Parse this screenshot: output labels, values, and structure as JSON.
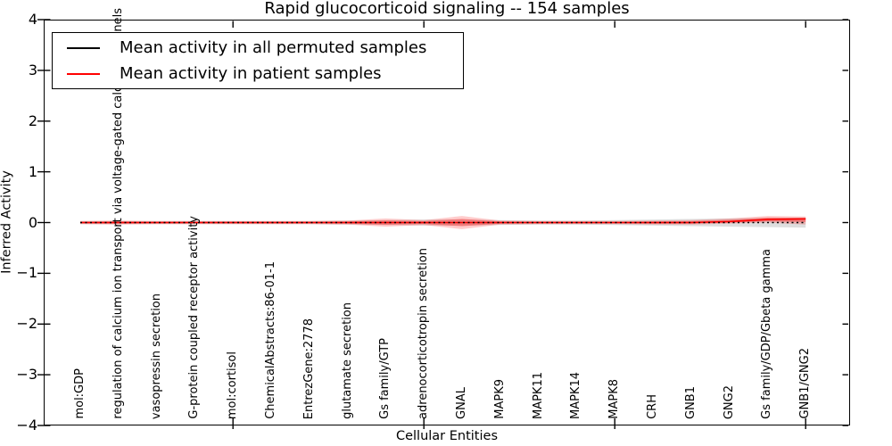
{
  "title": "Rapid glucocorticoid signaling -- 154 samples",
  "axes": {
    "xlabel": "Cellular Entities",
    "ylabel": "Inferred Activity",
    "ytick_labels": [
      "4",
      "3",
      "2",
      "1",
      "0",
      "−1",
      "−2",
      "−3",
      "−4"
    ]
  },
  "legend": {
    "items": [
      {
        "label": "Mean activity in all permuted samples",
        "color": "#000000"
      },
      {
        "label": "Mean activity in patient samples",
        "color": "#ff0000"
      }
    ]
  },
  "chart_data": {
    "type": "line",
    "title": "Rapid glucocorticoid signaling -- 154 samples",
    "xlabel": "Cellular Entities",
    "ylabel": "Inferred Activity",
    "ylim": [
      -4,
      4
    ],
    "yticks": [
      -4,
      -3,
      -2,
      -1,
      0,
      1,
      2,
      3,
      4
    ],
    "grid": false,
    "legend_position": "upper left",
    "categories": [
      "mol:GDP",
      "regulation of calcium ion transport via voltage-gated calcium channels",
      "vasopressin secretion",
      "G-protein coupled receptor activity",
      "mol:cortisol",
      "ChemicalAbstracts:86-01-1",
      "EntrezGene:2778",
      "glutamate secretion",
      "Gs family/GTP",
      "adrenocorticotropin secretion",
      "GNAL",
      "MAPK9",
      "MAPK11",
      "MAPK14",
      "MAPK8",
      "CRH",
      "GNB1",
      "GNG2",
      "Gs family/GDP/Gbeta gamma",
      "GNB1/GNG2"
    ],
    "xtick_marked_categories": [
      "mol:cortisol",
      "adrenocorticotropin secretion",
      "MAPK8",
      "GNB1/GNG2"
    ],
    "series": [
      {
        "name": "Mean activity in all permuted samples",
        "color": "#000000",
        "line_style": "dotted",
        "values": [
          0,
          0,
          0,
          0,
          0,
          0,
          0,
          0,
          0,
          0,
          0,
          0,
          0,
          0,
          0,
          0,
          0,
          0,
          0,
          0
        ]
      },
      {
        "name": "Mean activity in patient samples",
        "color": "#ff0000",
        "line_style": "solid",
        "values": [
          0,
          0,
          0,
          0,
          0,
          0,
          0,
          0,
          0,
          0,
          0,
          0,
          0,
          0,
          0,
          0,
          0,
          0.02,
          0.06,
          0.07
        ]
      }
    ],
    "bands": [
      {
        "name": "permuted samples spread",
        "color": "#000000",
        "opacity": 0.13,
        "upper": [
          0.03,
          0.03,
          0.03,
          0.03,
          0.03,
          0.03,
          0.03,
          0.04,
          0.05,
          0.06,
          0.06,
          0.05,
          0.04,
          0.04,
          0.05,
          0.06,
          0.07,
          0.08,
          0.09,
          0.1
        ],
        "lower": [
          -0.03,
          -0.03,
          -0.03,
          -0.03,
          -0.03,
          -0.03,
          -0.03,
          -0.04,
          -0.05,
          -0.06,
          -0.06,
          -0.05,
          -0.04,
          -0.04,
          -0.05,
          -0.06,
          -0.07,
          -0.08,
          -0.09,
          -0.1
        ]
      },
      {
        "name": "patient samples spread",
        "color": "#ff0000",
        "opacity": 0.2,
        "upper": [
          0.03,
          0.04,
          0.03,
          0.03,
          0.03,
          0.03,
          0.03,
          0.04,
          0.08,
          0.05,
          0.13,
          0.04,
          0.03,
          0.03,
          0.03,
          0.04,
          0.05,
          0.08,
          0.13,
          0.12
        ],
        "lower": [
          -0.03,
          -0.04,
          -0.03,
          -0.03,
          -0.03,
          -0.03,
          -0.03,
          -0.04,
          -0.08,
          -0.05,
          -0.13,
          -0.04,
          -0.03,
          -0.03,
          -0.03,
          -0.04,
          -0.04,
          -0.02,
          0.0,
          -0.04
        ]
      }
    ]
  }
}
